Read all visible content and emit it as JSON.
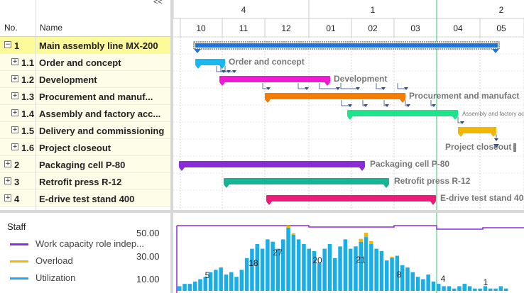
{
  "toolbar": {
    "collapse_label": "<<"
  },
  "table": {
    "headers": {
      "no": "No.",
      "name": "Name"
    },
    "rows": [
      {
        "no": "1",
        "name": "Main assembly line MX-200",
        "toggle": "−"
      },
      {
        "no": "1.1",
        "name": "Order and concept",
        "toggle": "+"
      },
      {
        "no": "1.2",
        "name": "Development",
        "toggle": "+"
      },
      {
        "no": "1.3",
        "name": "Procurement and manuf...",
        "toggle": "+"
      },
      {
        "no": "1.4",
        "name": "Assembly and factory acc...",
        "toggle": "+"
      },
      {
        "no": "1.5",
        "name": "Delivery and commissioning",
        "toggle": "+"
      },
      {
        "no": "1.6",
        "name": "Project closeout",
        "toggle": "+"
      },
      {
        "no": "2",
        "name": "Packaging cell P-80",
        "toggle": "+"
      },
      {
        "no": "3",
        "name": "Retrofit press R-12",
        "toggle": "+"
      },
      {
        "no": "4",
        "name": "E-drive test stand 400",
        "toggle": "+"
      }
    ]
  },
  "timeline": {
    "quarters": [
      "4",
      "1",
      "2"
    ],
    "months": [
      "10",
      "11",
      "12",
      "01",
      "02",
      "03",
      "04",
      "05"
    ]
  },
  "gantt": {
    "bars": [
      {
        "label": "",
        "color": "#1e74d8",
        "summary": true
      },
      {
        "label": "Order and concept",
        "color": "#19b8f0"
      },
      {
        "label": "Development",
        "color": "#f11ad2"
      },
      {
        "label": "Procurement and manufact",
        "color": "#f57c00"
      },
      {
        "label": "Assembly and factory acceptance",
        "color": "#1de38a"
      },
      {
        "label": "",
        "color": "#f2b705"
      },
      {
        "label": "Project closeout",
        "color": "#1e4fa0"
      },
      {
        "label": "Packaging cell P-80",
        "color": "#8a2bd8"
      },
      {
        "label": "Retrofit press R-12",
        "color": "#16b394"
      },
      {
        "label": "E-drive test stand 400",
        "color": "#ee1a7a"
      }
    ]
  },
  "staff": {
    "title": "Staff",
    "legend": [
      {
        "label": "Work capacity role indep...",
        "color": "#8a2be2"
      },
      {
        "label": "Overload",
        "color": "#f2b705"
      },
      {
        "label": "Utilization",
        "color": "#1aaee8"
      }
    ],
    "y_ticks": [
      "50.00",
      "30.00",
      "10.00"
    ],
    "peak_labels": [
      "5",
      "18",
      "27",
      "20",
      "21",
      "8",
      "4",
      "1"
    ]
  }
}
